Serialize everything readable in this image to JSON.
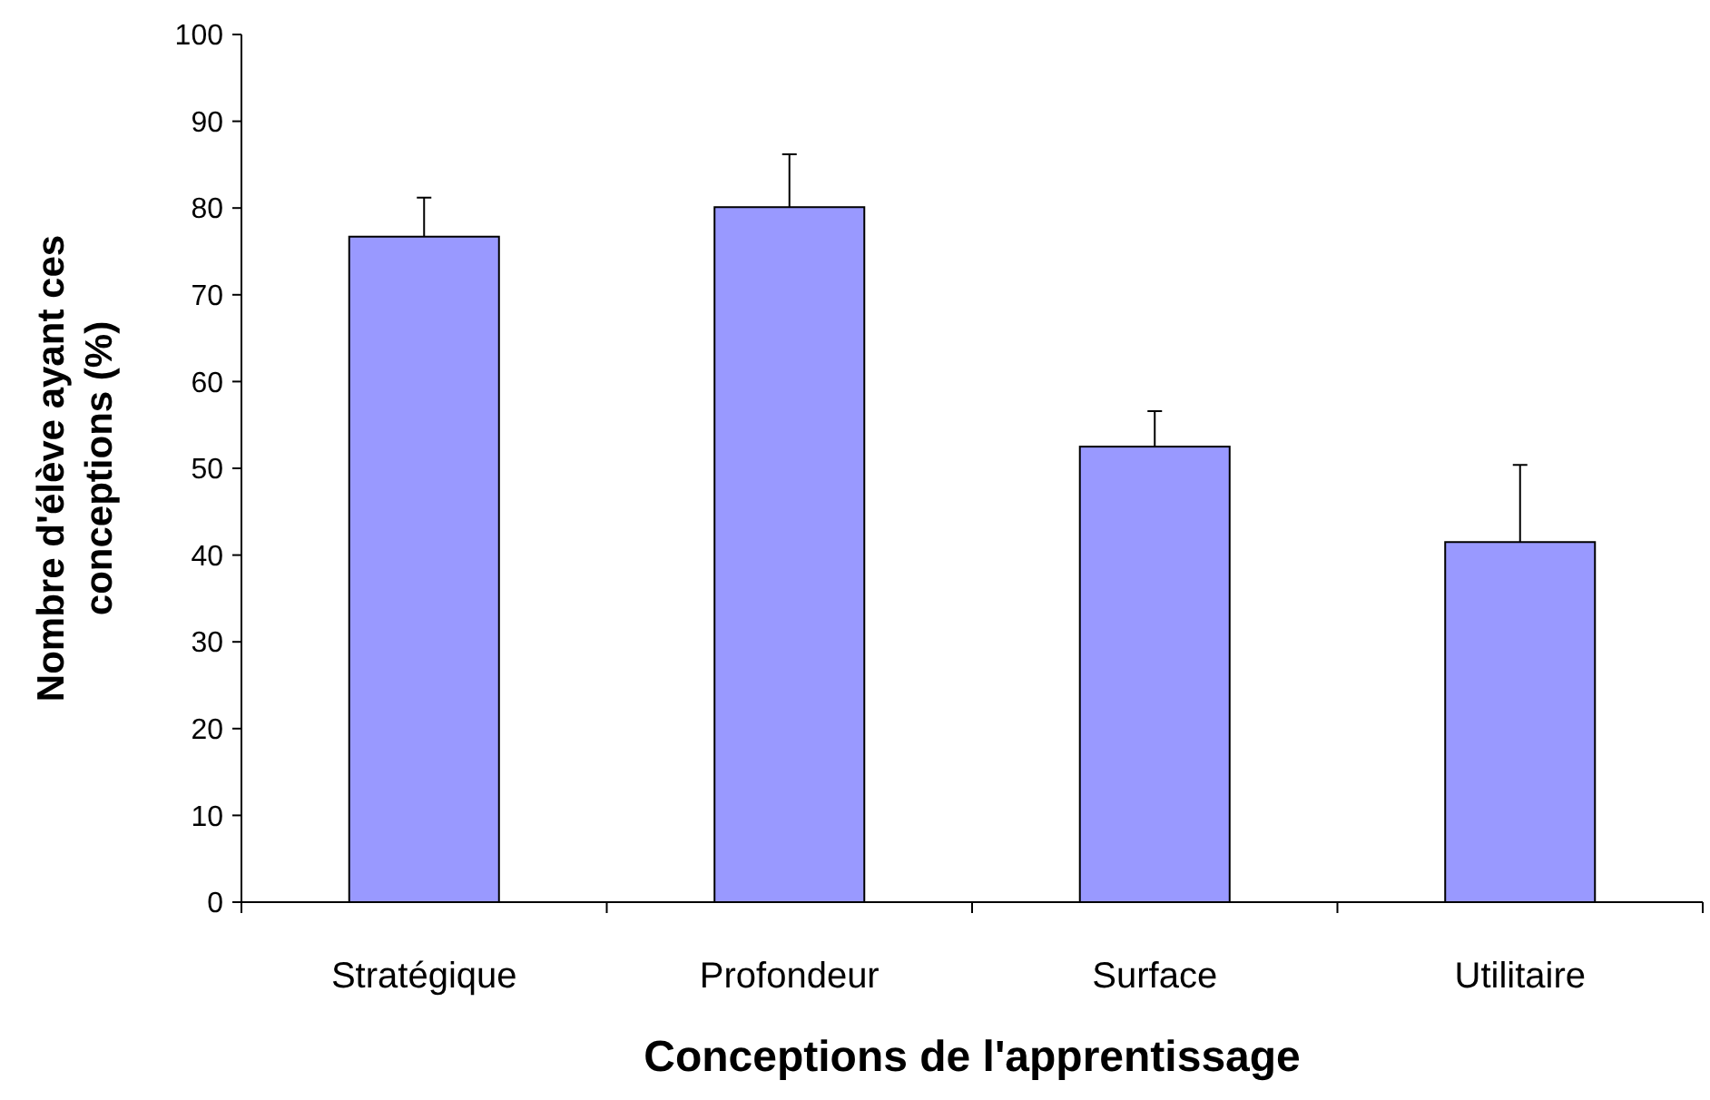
{
  "chart_data": {
    "type": "bar",
    "xlabel": "Conceptions de l'apprentissage",
    "ylabel": "Nombre d'élève ayant ces\nconceptions (%)",
    "categories": [
      "Stratégique",
      "Profondeur",
      "Surface",
      "Utilitaire"
    ],
    "values": [
      76.7,
      80.1,
      52.5,
      41.5
    ],
    "errors": [
      [
        76.7,
        81.2
      ],
      [
        80.1,
        86.2
      ],
      [
        52.5,
        56.6
      ],
      [
        41.5,
        50.4
      ]
    ],
    "color": "#9999ff",
    "ylim": [
      0,
      100
    ],
    "yticks": [
      0,
      10,
      20,
      30,
      40,
      50,
      60,
      70,
      80,
      90,
      100
    ],
    "grid": false
  }
}
